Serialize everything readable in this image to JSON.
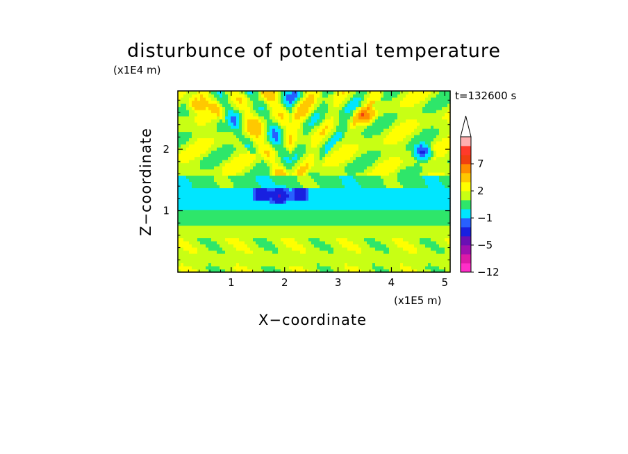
{
  "chart_data": {
    "type": "heatmap",
    "title": "disturbunce of potential temperature",
    "xlabel": "X−coordinate",
    "ylabel": "Z−coordinate",
    "x_unit": "(x1E5 m)",
    "y_unit": "(x1E4 m)",
    "time_label": "t=132600 s",
    "xlim": [
      0,
      5.1
    ],
    "ylim": [
      0,
      2.95
    ],
    "x_ticks": [
      "1",
      "2",
      "3",
      "4",
      "5"
    ],
    "y_ticks": [
      "1",
      "2"
    ],
    "colorbar": {
      "levels": [
        -12,
        -10,
        -8,
        -5,
        -4,
        -2,
        -1,
        0,
        1,
        2,
        3,
        5,
        7,
        9,
        11
      ],
      "labels": [
        "−12",
        "−5",
        "−1",
        "2",
        "7"
      ],
      "colors": [
        "#ff2ec8",
        "#dd1aa8",
        "#a010b0",
        "#6a10b4",
        "#1820e0",
        "#2860ff",
        "#00e6ff",
        "#2ee66a",
        "#c8ff14",
        "#ffff00",
        "#ffc800",
        "#ff8c00",
        "#f04010",
        "#ff3a2a",
        "#ffb0b0",
        "#ffffff"
      ],
      "extend": "max"
    },
    "bands": [
      {
        "z_range": [
          0.0,
          0.75
        ],
        "dominant_value": "yellow (+1 to +2)",
        "note": "near-surface layer with alternating green/yellow/orange cells"
      },
      {
        "z_range": [
          0.75,
          1.0
        ],
        "dominant_value": "green (0 to +1)"
      },
      {
        "z_range": [
          1.0,
          1.35
        ],
        "dominant_value": "cyan (-1 to 0)",
        "note": "cold layer with dark-blue patches near x=1.2-2.6"
      },
      {
        "z_range": [
          1.35,
          1.6
        ],
        "dominant_value": "green (0 to +1)"
      },
      {
        "z_range": [
          1.6,
          2.95
        ],
        "dominant_value": "yellow/orange (+1 to +3)",
        "note": "wave pattern with blue (-5 to -2) and red (+5 to +7) cells, V-shaped rays fanning upward from x~2"
      }
    ],
    "extremes": [
      {
        "x": 0.35,
        "z": 2.75,
        "value_range": "+5 to +7"
      },
      {
        "x": 3.5,
        "z": 2.55,
        "value_range": "+3 to +5"
      },
      {
        "x": 4.6,
        "z": 1.95,
        "value_range": "-5 to -2"
      },
      {
        "x": 1.9,
        "z": 1.25,
        "value_range": "-5 to -2"
      }
    ]
  }
}
